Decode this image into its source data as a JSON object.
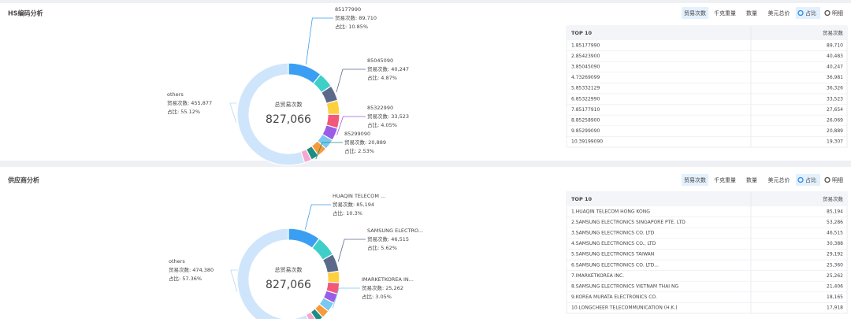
{
  "panels": [
    {
      "title": "HS编码分析",
      "tabs": [
        "贸易次数",
        "千克重量",
        "数量",
        "美元总价"
      ],
      "toggles": [
        "占比",
        "明细"
      ],
      "center_label": "总贸易次数",
      "center_value": "827,066",
      "donut": {
        "values": [
          89710,
          40483,
          40247,
          36981,
          36326,
          33523,
          27654,
          26069,
          20889,
          19307,
          455877
        ],
        "colors": [
          "#3a9ff2",
          "#3dcfc8",
          "#5b6a8a",
          "#fcd03f",
          "#f2587a",
          "#9a5ee6",
          "#79c8f0",
          "#f99a3a",
          "#1e8e80",
          "#f6a7cf",
          "#cfe5fb"
        ]
      },
      "callouts": [
        {
          "name": "85177990",
          "count": "贸易次数: 89,710",
          "share": "占比: 10.85%"
        },
        {
          "name": "85045090",
          "count": "贸易次数: 40,247",
          "share": "占比: 4.87%"
        },
        {
          "name": "85322990",
          "count": "贸易次数: 33,523",
          "share": "占比: 4.05%"
        },
        {
          "name": "85299090",
          "count": "贸易次数: 20,889",
          "share": "占比: 2.53%"
        },
        {
          "name": "others",
          "count": "贸易次数: 455,877",
          "share": "占比: 55.12%"
        }
      ],
      "table": {
        "header": [
          "TOP 10",
          "贸易次数"
        ],
        "rows": [
          [
            "1.85177990",
            "89,710"
          ],
          [
            "2.85423900",
            "40,483"
          ],
          [
            "3.85045090",
            "40,247"
          ],
          [
            "4.73269099",
            "36,981"
          ],
          [
            "5.85332129",
            "36,326"
          ],
          [
            "6.85322990",
            "33,523"
          ],
          [
            "7.85177910",
            "27,654"
          ],
          [
            "8.85258900",
            "26,069"
          ],
          [
            "9.85299090",
            "20,889"
          ],
          [
            "10.39199090",
            "19,307"
          ]
        ]
      }
    },
    {
      "title": "供应商分析",
      "tabs": [
        "贸易次数",
        "千克重量",
        "数量",
        "美元总价"
      ],
      "toggles": [
        "占比",
        "明细"
      ],
      "center_label": "总贸易次数",
      "center_value": "827,066",
      "donut": {
        "values": [
          85194,
          53286,
          46515,
          30388,
          29192,
          25360,
          25262,
          21406,
          18165,
          17918,
          474380
        ],
        "colors": [
          "#3a9ff2",
          "#3dcfc8",
          "#5b6a8a",
          "#fcd03f",
          "#f2587a",
          "#9a5ee6",
          "#79c8f0",
          "#f99a3a",
          "#1e8e80",
          "#f6a7cf",
          "#cfe5fb"
        ]
      },
      "callouts": [
        {
          "name": "HUAQIN TELECOM ...",
          "count": "贸易次数: 85,194",
          "share": "占比: 10.3%"
        },
        {
          "name": "SAMSUNG ELECTRO...",
          "count": "贸易次数: 46,515",
          "share": "占比: 5.62%"
        },
        {
          "name": "IMARKETKOREA IN...",
          "count": "贸易次数: 25,262",
          "share": "占比: 3.05%"
        },
        {
          "name": "others",
          "count": "贸易次数: 474,380",
          "share": "占比: 57.36%"
        }
      ],
      "table": {
        "header": [
          "TOP 10",
          "贸易次数"
        ],
        "rows": [
          [
            "1.HUAQIN TELECOM HONG KONG",
            "85,194"
          ],
          [
            "2.SAMSUNG ELECTRONICS SINGAPORE PTE. LTD",
            "53,286"
          ],
          [
            "3.SAMSUNG ELECTRONICS CO. LTD",
            "46,515"
          ],
          [
            "4.SAMSUNG ELECTRONICS CO., LTD",
            "30,388"
          ],
          [
            "5.SAMSUNG ELECTRONICS TAIWAN",
            "29,192"
          ],
          [
            "6.SAMSUNG ELECTRONICS CO. LTD...",
            "25,360"
          ],
          [
            "7.IMARKETKOREA INC.",
            "25,262"
          ],
          [
            "8.SAMSUNG ELECTRONICS VIETNAM THAI NG",
            "21,406"
          ],
          [
            "9.KOREA MURATA ELECTRONICS CO.",
            "18,165"
          ],
          [
            "10.LONGCHEER TELECOMMUNICATION (H.K.)",
            "17,918"
          ]
        ]
      }
    }
  ]
}
